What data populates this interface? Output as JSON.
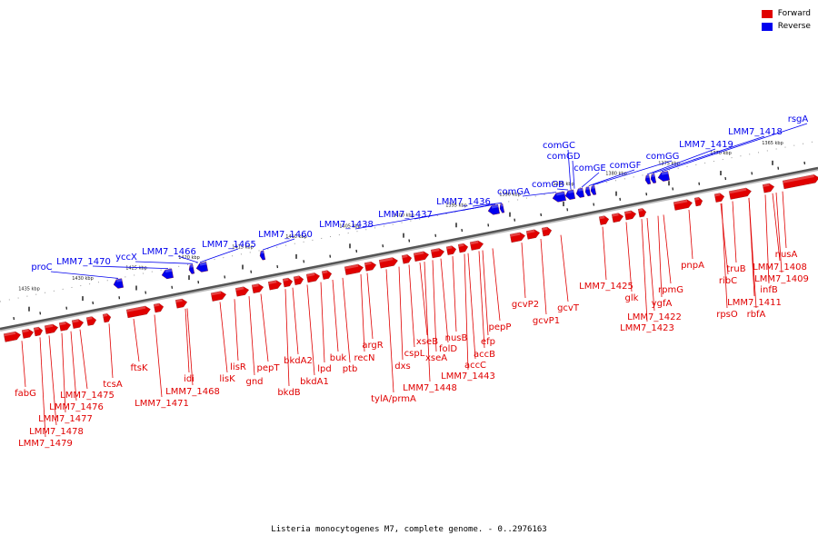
{
  "legend": [
    {
      "label": "Forward",
      "color": "#e00000"
    },
    {
      "label": "Reverse",
      "color": "#0000ee"
    }
  ],
  "caption": "Listeria monocytogenes M7, complete genome. - 0..2976163",
  "colors": {
    "forward": "#e00000",
    "reverse": "#0000ee",
    "backbone": "#555555",
    "ticks": "#444444"
  },
  "kbp_ticks": [
    "1435 kbp",
    "1430 kbp",
    "1425 kbp",
    "1420 kbp",
    "1415 kbp",
    "1410 kbp",
    "1405 kbp",
    "1400 kbp",
    "1395 kbp",
    "1390 kbp",
    "1385 kbp",
    "1380 kbp",
    "1375 kbp",
    "1370 kbp",
    "1365 kbp"
  ],
  "reverse_genes": [
    "proC",
    "LMM7_1470",
    "yccX",
    "LMM7_1466",
    "LMM7_1465",
    "LMM7_1460",
    "LMM7_1438",
    "LMM7_1437",
    "LMM7_1436",
    "comGA",
    "comGB",
    "comGC",
    "comGD",
    "comGE",
    "comGF",
    "comGG",
    "LMM7_1419",
    "LMM7_1418",
    "rsgA"
  ],
  "forward_genes": [
    "fabG",
    "LMM7_1479",
    "LMM7_1478",
    "LMM7_1477",
    "LMM7_1476",
    "LMM7_1475",
    "tcsA",
    "ftsK",
    "LMM7_1471",
    "idi",
    "LMM7_1468",
    "lisK",
    "lisR",
    "gnd",
    "pepT",
    "bkdB",
    "bkdA2",
    "bkdA1",
    "lpd",
    "buk",
    "ptb",
    "recN",
    "argR",
    "tylA/prmA",
    "dxs",
    "cspL",
    "xseB",
    "xseA",
    "LMM7_1448",
    "folD",
    "nusB",
    "accB",
    "accC",
    "LMM7_1443",
    "efp",
    "pepP",
    "gcvP2",
    "gcvP1",
    "gcvT",
    "LMM7_1425",
    "glk",
    "LMM7_1422",
    "ygfA",
    "LMM7_1423",
    "rpmG",
    "pnpA",
    "rpsO",
    "ribC",
    "truB",
    "LMM7_1411",
    "rbfA",
    "infB",
    "LMM7_1409",
    "LMM7_1408",
    "nusA"
  ]
}
